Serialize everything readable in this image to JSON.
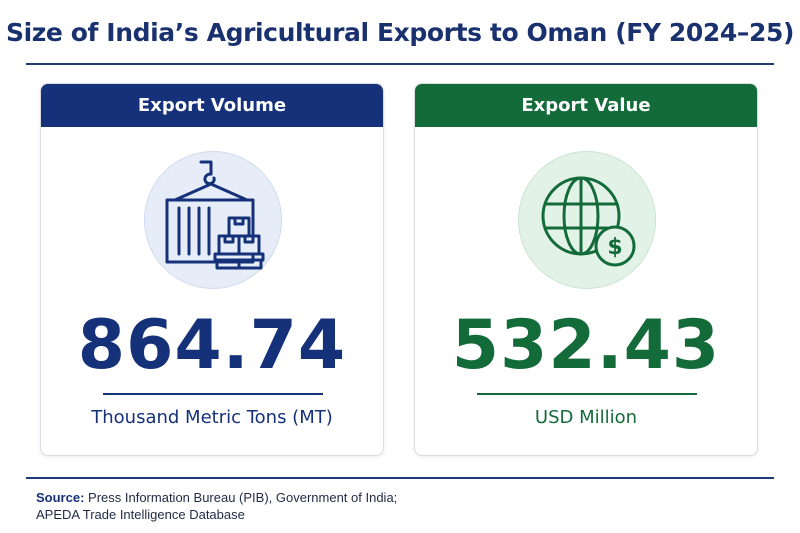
{
  "title": "Size of India’s Agricultural Exports to Oman (FY 2024–25)",
  "cards": [
    {
      "header": "Export Volume",
      "icon": "cargo-container-icon",
      "value": "864.74",
      "unit": "Thousand Metric Tons (MT)",
      "color": "#15317a"
    },
    {
      "header": "Export Value",
      "icon": "globe-dollar-icon",
      "value": "532.43",
      "unit": "USD Million",
      "color": "#146b3a"
    }
  ],
  "source": {
    "label": "Source:",
    "line1": "Press Information Bureau (PIB), Government of India;",
    "line2": "APEDA Trade Intelligence Database"
  }
}
